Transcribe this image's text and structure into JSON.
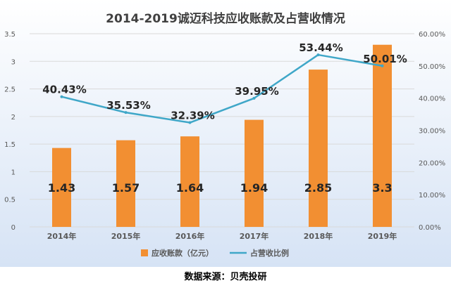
{
  "colors": {
    "bar": "#F28F32",
    "line": "#3FA7C8",
    "grid": "#D9D9D9",
    "axis_text": "#595959",
    "title": "#404040",
    "data_label": "#262626",
    "background_top": "#FFFFFF",
    "background_bottom": "#D6E3F5"
  },
  "source_text": "数据来源：贝壳投研",
  "chart_data": {
    "type": "bar",
    "title": "2014-2019诚迈科技应收账款及占营收情况",
    "categories": [
      "2014年",
      "2015年",
      "2016年",
      "2017年",
      "2018年",
      "2019年"
    ],
    "series": [
      {
        "name": "应收账款（亿元）",
        "type": "bar",
        "axis": "left",
        "values": [
          1.43,
          1.57,
          1.64,
          1.94,
          2.85,
          3.3
        ],
        "labels": [
          "1.43",
          "1.57",
          "1.64",
          "1.94",
          "2.85",
          "3.3"
        ]
      },
      {
        "name": "占营收比例",
        "type": "line",
        "axis": "right",
        "values": [
          40.43,
          35.53,
          32.39,
          39.95,
          53.44,
          50.01
        ],
        "labels": [
          "40.43%",
          "35.53%",
          "32.39%",
          "39.95%",
          "53.44%",
          "50.01%"
        ]
      }
    ],
    "ylim_left": [
      0,
      3.5
    ],
    "yticks_left": [
      "0",
      "0.5",
      "1",
      "1.5",
      "2",
      "2.5",
      "3",
      "3.5"
    ],
    "ylim_right": [
      0,
      60
    ],
    "yticks_right": [
      "0.00%",
      "10.00%",
      "20.00%",
      "30.00%",
      "40.00%",
      "50.00%",
      "60.00%"
    ],
    "grid": true,
    "legend_position": "bottom"
  }
}
